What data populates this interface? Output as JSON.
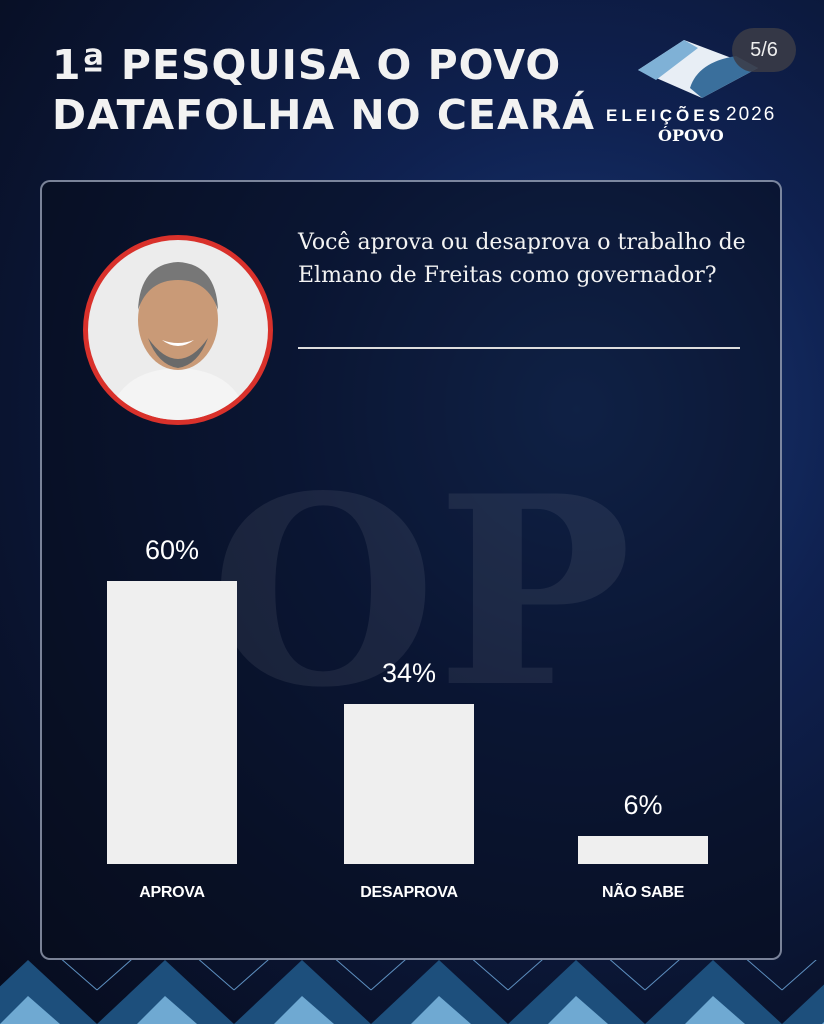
{
  "header": {
    "title_line1": "1ª PESQUISA O POVO",
    "title_line2": "DATAFOLHA NO CEARÁ",
    "page_indicator": "5/6"
  },
  "logo": {
    "text": "ELEIÇÕES",
    "year": "2026",
    "brand": "ÓPOVO"
  },
  "watermark": "OP",
  "question": "Você aprova ou desaprova o trabalho de Elmano de Freitas como governador?",
  "chart_data": {
    "type": "bar",
    "title": "Você aprova ou desaprova o trabalho de Elmano de Freitas como governador?",
    "categories": [
      "APROVA",
      "DESAPROVA",
      "NÃO SABE"
    ],
    "values": [
      60,
      34,
      6
    ],
    "labels": [
      "60%",
      "34%",
      "6%"
    ],
    "ylim": [
      0,
      60
    ],
    "xlabel": "",
    "ylabel": ""
  }
}
